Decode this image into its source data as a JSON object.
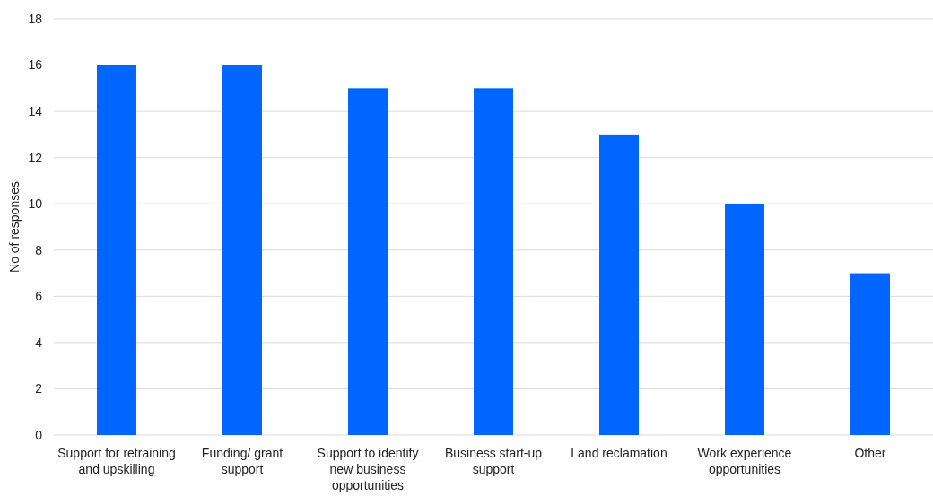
{
  "chart_data": {
    "type": "bar",
    "ylabel": "No of responses",
    "categories": [
      "Support for retraining and upskilling",
      "Funding/ grant support",
      "Support to identify new business opportunities",
      "Business start-up support",
      "Land reclamation",
      "Work experience opportunities",
      "Other"
    ],
    "values": [
      16,
      16,
      15,
      15,
      13,
      10,
      7
    ],
    "color": "#0066ff",
    "ylim": [
      0,
      18
    ],
    "yticks": [
      0,
      2,
      4,
      6,
      8,
      10,
      12,
      14,
      16,
      18
    ],
    "grid": "y"
  }
}
